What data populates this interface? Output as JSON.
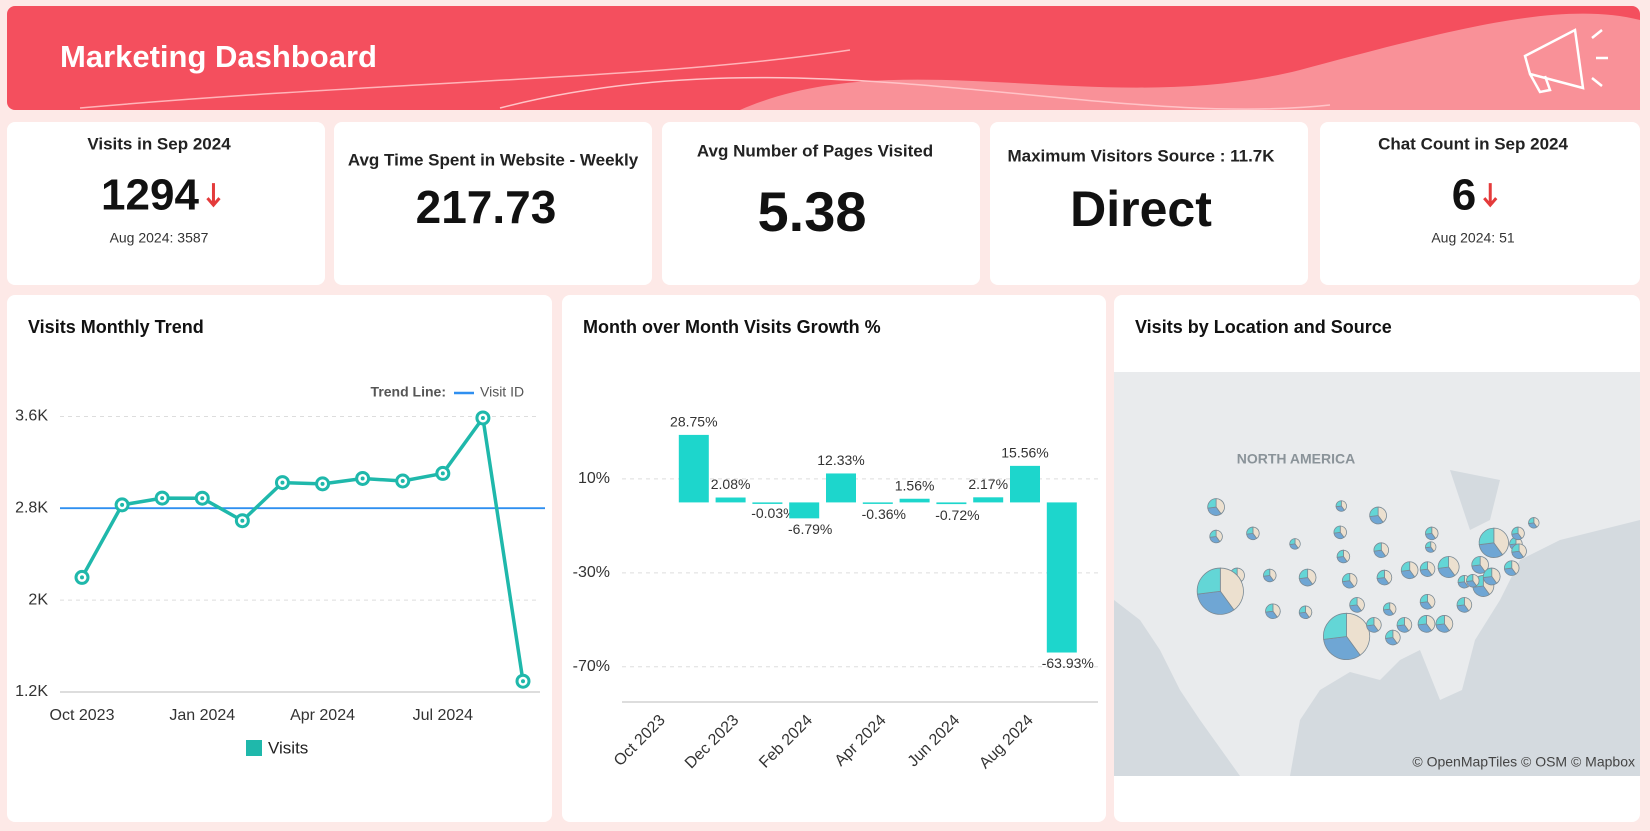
{
  "header": {
    "title": "Marketing Dashboard"
  },
  "kpis": [
    {
      "label": "Visits in Sep 2024",
      "value": 1294,
      "compare": "Aug 2024: 3587"
    },
    {
      "label": "Avg Time Spent in Website - Weekly",
      "value": 217.73
    },
    {
      "label": "Avg Number of Pages Visited",
      "value": 5.38
    },
    {
      "label": "Maximum Visitors Source : 11.7K",
      "value": "Direct"
    },
    {
      "label": "Chat Count in Sep 2024",
      "value": 6,
      "compare": "Aug 2024: 51"
    }
  ],
  "chart_data": [
    {
      "type": "line",
      "title": "Visits Monthly Trend",
      "categories": [
        "Oct 2023",
        null,
        null,
        "Jan 2024",
        null,
        null,
        "Apr 2024",
        null,
        null,
        "Jul 2024",
        null,
        null
      ],
      "series": [
        {
          "name": "Visits",
          "color": "#1fb8ab",
          "values": [
            2198,
            2830,
            2889,
            2888,
            2692,
            3024,
            3013,
            3060,
            3038,
            3104,
            3587,
            1294
          ]
        }
      ],
      "trend_line": {
        "label": "Trend Line:",
        "name": "Visit ID",
        "value": 2801,
        "color": "#2f8ff0"
      },
      "ylim": [
        1200,
        3700
      ],
      "yticks": [
        {
          "value": 1200,
          "label": "1.2K"
        },
        {
          "value": 2000,
          "label": "2K"
        },
        {
          "value": 2800,
          "label": "2.8K"
        },
        {
          "value": 3600,
          "label": "3.6K"
        }
      ],
      "grid": true
    },
    {
      "type": "bar",
      "title": "Month over Month Visits Growth %",
      "categories": [
        "Oct 2023",
        null,
        "Dec 2023",
        null,
        "Feb 2024",
        null,
        "Apr 2024",
        null,
        "Jun 2024",
        null,
        "Aug 2024",
        null
      ],
      "values": [
        null,
        28.75,
        2.08,
        -0.03,
        -6.79,
        12.33,
        -0.36,
        1.56,
        -0.72,
        2.17,
        15.56,
        -63.93
      ],
      "value_labels": [
        null,
        "28.75%",
        "2.08%",
        "-0.03%",
        "-6.79%",
        "12.33%",
        "-0.36%",
        "1.56%",
        "-0.72%",
        "2.17%",
        "15.56%",
        "-63.93%"
      ],
      "color": "#1dd6cc",
      "ylim": [
        -85,
        50
      ],
      "yticks": [
        {
          "value": 10,
          "label": "10%"
        },
        {
          "value": -30,
          "label": "-30%"
        },
        {
          "value": -70,
          "label": "-70%"
        }
      ],
      "grid": true
    }
  ],
  "map": {
    "title": "Visits by Location and Source",
    "region_label": "NORTH AMERICA",
    "attribution": "© OpenMapTiles © OSM © Mapbox"
  }
}
